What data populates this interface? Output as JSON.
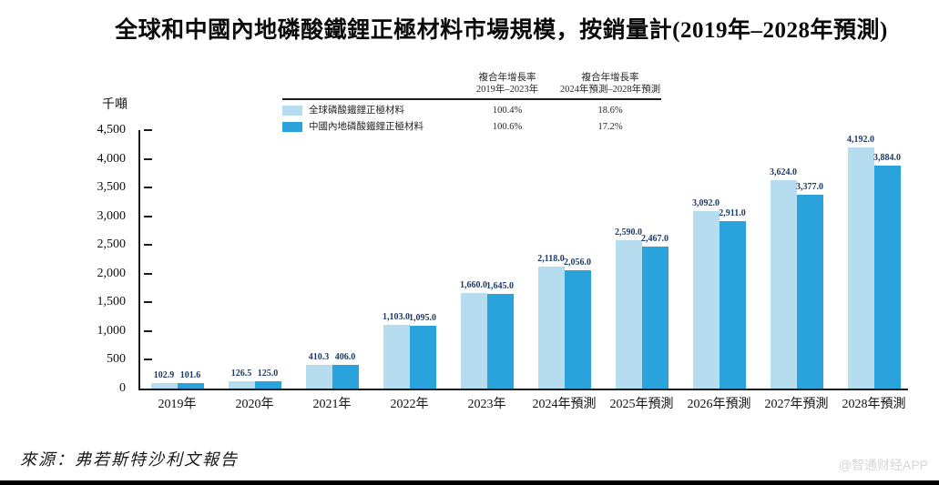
{
  "title": "全球和中國內地磷酸鐵鋰正極材料市場規模，按銷量計(2019年–2028年預測)",
  "y_axis": {
    "unit_label": "千噸"
  },
  "source": "來源：弗若斯特沙利文報告",
  "watermark": "@智通财经APP",
  "colors": {
    "bar_global": "#b6dcef",
    "bar_china": "#2aa3dc",
    "data_label": "#1e3a68",
    "axis": "#1b1b1b"
  },
  "cagr_table": {
    "columns": [
      {
        "header_line1": "複合年增長率",
        "header_line2": "2019年–2023年"
      },
      {
        "header_line1": "複合年增長率",
        "header_line2": "2024年預測–2028年預測"
      }
    ],
    "rows": [
      {
        "name": "全球磷酸鐵鋰正極材料",
        "cagr_2019_2023": "100.4%",
        "cagr_2024_2028": "18.6%"
      },
      {
        "name": "中國內地磷酸鐵鋰正極材料",
        "cagr_2019_2023": "100.6%",
        "cagr_2024_2028": "17.2%"
      }
    ]
  },
  "chart_data": {
    "type": "bar",
    "title": "全球和中國內地磷酸鐵鋰正極材料市場規模，按銷量計(2019年–2028年預測)",
    "categories": [
      "2019年",
      "2020年",
      "2021年",
      "2022年",
      "2023年",
      "2024年預測",
      "2025年預測",
      "2026年預測",
      "2027年預測",
      "2028年預測"
    ],
    "series": [
      {
        "key": "global",
        "name": "全球磷酸鐵鋰正極材料",
        "color": "#b6dcef",
        "values": [
          102.9,
          126.5,
          410.3,
          1103.0,
          1660.0,
          2118.0,
          2590.0,
          3092.0,
          3624.0,
          4192.0
        ]
      },
      {
        "key": "china",
        "name": "中國內地磷酸鐵鋰正極材料",
        "color": "#2aa3dc",
        "values": [
          101.6,
          125.0,
          406.0,
          1095.0,
          1645.0,
          2056.0,
          2467.0,
          2911.0,
          3377.0,
          3884.0
        ]
      }
    ],
    "xlabel": "",
    "ylabel": "千噸",
    "ylim": [
      0,
      4500
    ],
    "ytick_step": 500,
    "grid": false,
    "legend_position": "top"
  }
}
